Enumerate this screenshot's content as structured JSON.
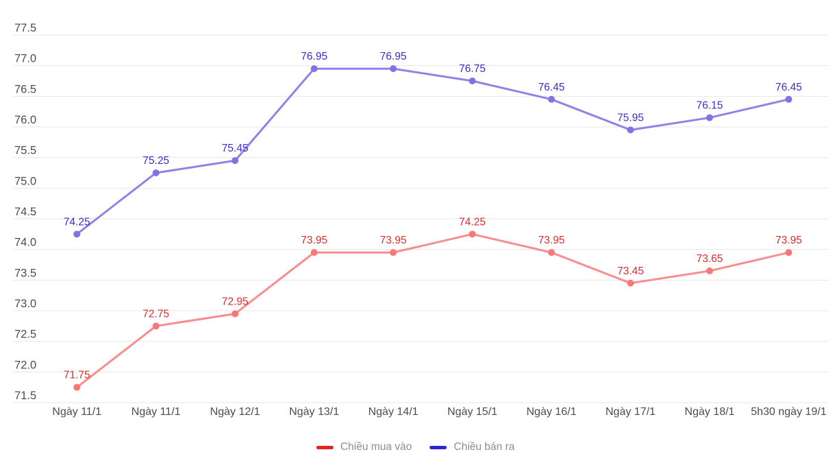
{
  "chart_data": {
    "type": "line",
    "title": "",
    "xlabel": "",
    "ylabel": "",
    "categories": [
      "Ngày 11/1",
      "Ngày 11/1",
      "Ngày 12/1",
      "Ngày 13/1",
      "Ngày 14/1",
      "Ngày 15/1",
      "Ngày 16/1",
      "Ngày 17/1",
      "Ngày 18/1",
      "5h30 ngày 19/1"
    ],
    "series": [
      {
        "name": "Chiều mua vào",
        "values": [
          71.75,
          72.75,
          72.95,
          73.95,
          73.95,
          74.25,
          73.95,
          73.45,
          73.65,
          73.95
        ],
        "line_color": "#f98d8d",
        "point_color": "#f87878",
        "label_color": "#e12b2b",
        "legend_color": "#e52421"
      },
      {
        "name": "Chiều bán ra",
        "values": [
          74.25,
          75.25,
          75.45,
          76.95,
          76.95,
          76.75,
          76.45,
          75.95,
          76.15,
          76.45
        ],
        "line_color": "#9181e8",
        "point_color": "#8273e2",
        "label_color": "#4527cf",
        "legend_color": "#2c25d4"
      }
    ],
    "ylim": [
      71.5,
      77.5
    ],
    "ytick_step": 0.5,
    "ytick_labels": [
      "77.5",
      "77.0",
      "76.5",
      "76.0",
      "75.5",
      "75.0",
      "74.5",
      "74.0",
      "73.5",
      "73.0",
      "72.5",
      "72.0",
      "71.5"
    ],
    "grid": true,
    "grid_color": "#e7e7e7",
    "legend_position": "bottom"
  }
}
